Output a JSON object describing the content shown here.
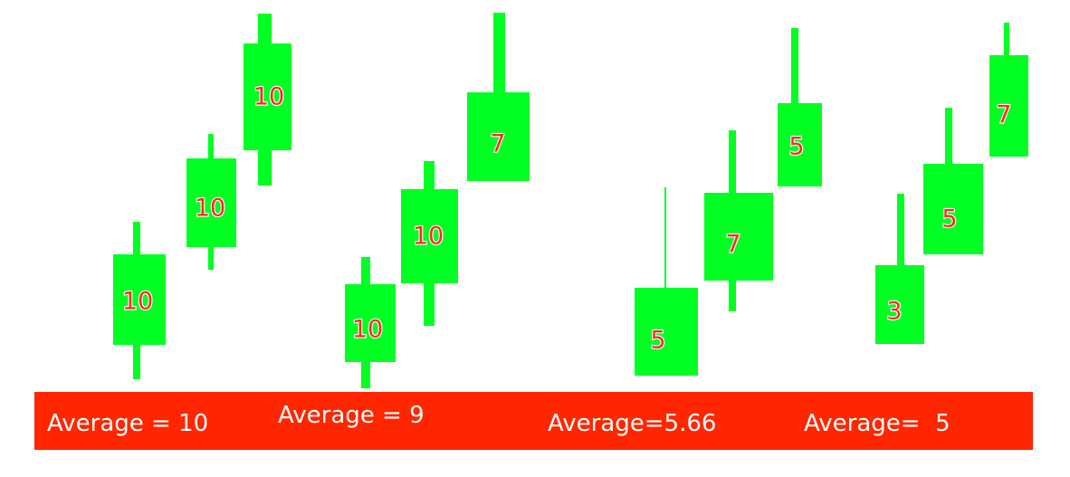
{
  "colors": {
    "candle": "#00ff22",
    "label": "#ff2a1a",
    "banner": "#ff2600",
    "banner_text": "#ffffff"
  },
  "groups": [
    {
      "average_label": "Average = 10",
      "candles": [
        {
          "label": "10"
        },
        {
          "label": "10"
        },
        {
          "label": "10"
        }
      ]
    },
    {
      "average_label": "Average = 9",
      "candles": [
        {
          "label": "10"
        },
        {
          "label": "10"
        },
        {
          "label": "7"
        }
      ]
    },
    {
      "average_label": "Average=5.66",
      "candles": [
        {
          "label": "5"
        },
        {
          "label": "7"
        },
        {
          "label": "5"
        }
      ]
    },
    {
      "average_label": "Average=  5",
      "candles": [
        {
          "label": "3"
        },
        {
          "label": "5"
        },
        {
          "label": "7"
        }
      ]
    }
  ]
}
